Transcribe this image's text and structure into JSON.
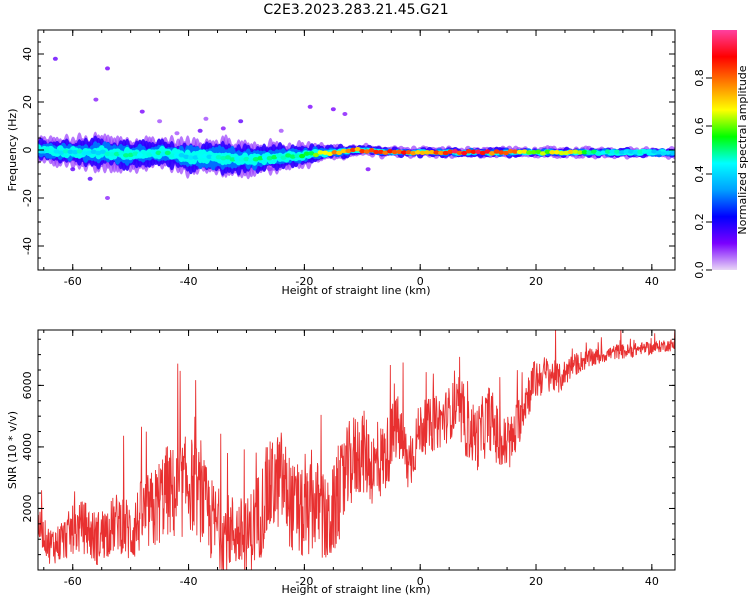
{
  "title": "C2E3.2023.283.21.45.G21",
  "chart_data": [
    {
      "type": "heatmap",
      "xlabel": "Height of straight line (km)",
      "ylabel": "Frequency (Hz)",
      "xlim": [
        -66,
        44
      ],
      "ylim": [
        -50,
        50
      ],
      "xticks": [
        -60,
        -40,
        -20,
        0,
        20,
        40
      ],
      "yticks": [
        -40,
        -20,
        0,
        20,
        40
      ],
      "colorbar": {
        "label": "Normalized spectral amplitude",
        "range": [
          0,
          1
        ],
        "ticks": [
          "0.0",
          "0.2",
          "0.4",
          "0.6",
          "0.8"
        ],
        "colormap": [
          "#e8d6f6",
          "#7a00ff",
          "#0000ff",
          "#00a0ff",
          "#00ffff",
          "#00ff00",
          "#ffff00",
          "#ff8000",
          "#ff0000",
          "#ff40a0"
        ]
      },
      "band": {
        "x": [
          -66,
          -60,
          -55,
          -50,
          -45,
          -40,
          -35,
          -30,
          -25,
          -20,
          -15,
          -10,
          -5,
          0,
          5,
          10,
          15,
          20,
          25,
          30,
          35,
          40,
          44
        ],
        "center_freq": [
          0,
          -1,
          -1,
          -2,
          -1,
          -3,
          -3,
          -4,
          -3,
          -2,
          -1,
          0,
          -1,
          -1,
          -1,
          -1,
          -1,
          -1,
          -1,
          -1,
          -1,
          -1,
          -1
        ],
        "half_width": [
          5,
          6,
          7,
          7,
          6,
          7,
          8,
          7,
          6,
          5,
          3,
          2,
          2,
          2,
          2,
          2,
          2,
          2,
          2,
          2,
          2,
          2,
          2
        ],
        "peak_amplitude": [
          0.45,
          0.45,
          0.45,
          0.5,
          0.5,
          0.45,
          0.45,
          0.5,
          0.5,
          0.55,
          0.75,
          0.85,
          0.92,
          0.8,
          0.92,
          0.9,
          0.85,
          0.6,
          0.75,
          0.5,
          0.45,
          0.45,
          0.4
        ]
      }
    },
    {
      "type": "line",
      "xlabel": "Height of straight line (km)",
      "ylabel": "SNR (10 * v/v)",
      "xlim": [
        -66,
        44
      ],
      "ylim": [
        0,
        7800
      ],
      "xticks": [
        -60,
        -40,
        -20,
        0,
        20,
        40
      ],
      "yticks": [
        2000,
        4000,
        6000
      ],
      "series": [
        {
          "color": "#e83030",
          "x": [
            -66,
            -64,
            -62,
            -60,
            -58,
            -56,
            -54,
            -52,
            -50,
            -48,
            -46,
            -44,
            -42,
            -40,
            -38,
            -36,
            -34,
            -32,
            -30,
            -28,
            -26,
            -24,
            -22,
            -20,
            -18,
            -16,
            -14,
            -12,
            -10,
            -8,
            -6,
            -4,
            -2,
            0,
            2,
            4,
            6,
            8,
            10,
            12,
            14,
            16,
            18,
            20,
            22,
            24,
            26,
            28,
            30,
            32,
            34,
            36,
            38,
            40,
            42,
            44
          ],
          "y": [
            1500,
            800,
            900,
            1300,
            1400,
            1000,
            1300,
            1600,
            1200,
            1800,
            1900,
            2600,
            2400,
            2900,
            2400,
            1600,
            1200,
            1300,
            1000,
            1700,
            2600,
            3000,
            2000,
            1700,
            2200,
            1400,
            2400,
            3500,
            3900,
            3300,
            3700,
            4700,
            3400,
            4600,
            4700,
            4900,
            5300,
            4600,
            4300,
            5000,
            4000,
            4200,
            5500,
            6200,
            6400,
            6200,
            6600,
            6800,
            6900,
            7000,
            7100,
            7100,
            7200,
            7200,
            7300,
            7300
          ],
          "noise": [
            500,
            600,
            700,
            800,
            900,
            900,
            900,
            1000,
            1100,
            1200,
            1400,
            1500,
            1600,
            1600,
            1500,
            1400,
            1300,
            1200,
            1300,
            1500,
            1600,
            1600,
            1500,
            1500,
            1500,
            1500,
            1500,
            1500,
            1400,
            1300,
            1200,
            1100,
            1000,
            900,
            900,
            900,
            900,
            1000,
            1100,
            1100,
            1000,
            900,
            800,
            700,
            600,
            500,
            400,
            350,
            300,
            250,
            250,
            250,
            200,
            200,
            200,
            200
          ]
        }
      ]
    }
  ]
}
